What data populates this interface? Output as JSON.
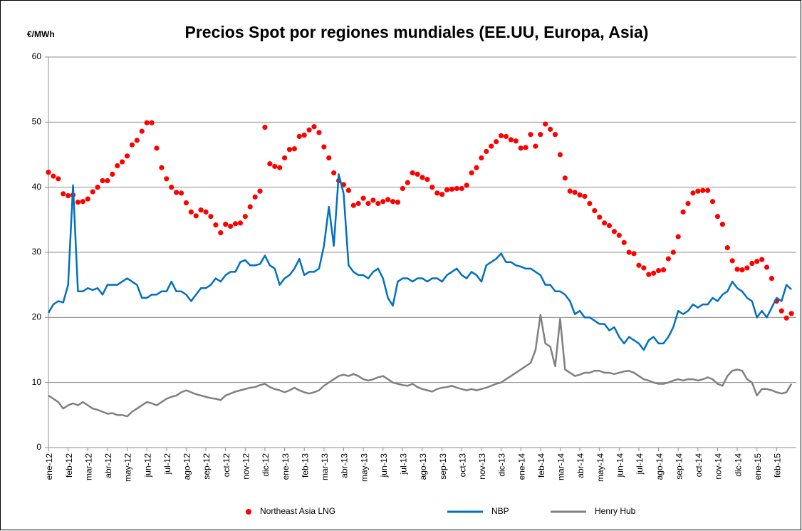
{
  "chart_data": {
    "type": "mixed",
    "title": "Precios Spot por regiones mundiales (EE.UU, Europa, Asia)",
    "y_label": "€/MWh",
    "ylim": [
      0,
      60
    ],
    "yticks": [
      0,
      10,
      20,
      30,
      40,
      50,
      60
    ],
    "xlim": [
      0,
      38
    ],
    "xticks": [
      {
        "value": 0,
        "label": "ene-12"
      },
      {
        "value": 1,
        "label": "feb-12"
      },
      {
        "value": 2,
        "label": "mar-12"
      },
      {
        "value": 3,
        "label": "abr-12"
      },
      {
        "value": 4,
        "label": "may-12"
      },
      {
        "value": 5,
        "label": "jun-12"
      },
      {
        "value": 6,
        "label": "jul-12"
      },
      {
        "value": 7,
        "label": "ago-12"
      },
      {
        "value": 8,
        "label": "sep-12"
      },
      {
        "value": 9,
        "label": "oct-12"
      },
      {
        "value": 10,
        "label": "nov-12"
      },
      {
        "value": 11,
        "label": "dic-12"
      },
      {
        "value": 12,
        "label": "ene-13"
      },
      {
        "value": 13,
        "label": "feb-13"
      },
      {
        "value": 14,
        "label": "mar-13"
      },
      {
        "value": 15,
        "label": "abr-13"
      },
      {
        "value": 16,
        "label": "may-13"
      },
      {
        "value": 17,
        "label": "jun-13"
      },
      {
        "value": 18,
        "label": "jul-13"
      },
      {
        "value": 19,
        "label": "ago-13"
      },
      {
        "value": 20,
        "label": "sep-13"
      },
      {
        "value": 21,
        "label": "oct-13"
      },
      {
        "value": 22,
        "label": "nov-13"
      },
      {
        "value": 23,
        "label": "dic-13"
      },
      {
        "value": 24,
        "label": "ene-14"
      },
      {
        "value": 25,
        "label": "feb-14"
      },
      {
        "value": 26,
        "label": "mar-14"
      },
      {
        "value": 27,
        "label": "abr-14"
      },
      {
        "value": 28,
        "label": "may-14"
      },
      {
        "value": 29,
        "label": "jun-14"
      },
      {
        "value": 30,
        "label": "jul-14"
      },
      {
        "value": 31,
        "label": "ago-14"
      },
      {
        "value": 32,
        "label": "sep-14"
      },
      {
        "value": 33,
        "label": "oct-14"
      },
      {
        "value": 34,
        "label": "nov-14"
      },
      {
        "value": 35,
        "label": "dic-14"
      },
      {
        "value": 36,
        "label": "ene-15"
      },
      {
        "value": 37,
        "label": "feb-15"
      }
    ],
    "grid": true,
    "legend": "bottom",
    "x": [
      0,
      0.25,
      0.5,
      0.75,
      1,
      1.25,
      1.5,
      1.75,
      2,
      2.25,
      2.5,
      2.75,
      3,
      3.25,
      3.5,
      3.75,
      4,
      4.25,
      4.5,
      4.75,
      5,
      5.25,
      5.5,
      5.75,
      6,
      6.25,
      6.5,
      6.75,
      7,
      7.25,
      7.5,
      7.75,
      8,
      8.25,
      8.5,
      8.75,
      9,
      9.25,
      9.5,
      9.75,
      10,
      10.25,
      10.5,
      10.75,
      11,
      11.25,
      11.5,
      11.75,
      12,
      12.25,
      12.5,
      12.75,
      13,
      13.25,
      13.5,
      13.75,
      14,
      14.25,
      14.5,
      14.75,
      15,
      15.25,
      15.5,
      15.75,
      16,
      16.25,
      16.5,
      16.75,
      17,
      17.25,
      17.5,
      17.75,
      18,
      18.25,
      18.5,
      18.75,
      19,
      19.25,
      19.5,
      19.75,
      20,
      20.25,
      20.5,
      20.75,
      21,
      21.25,
      21.5,
      21.75,
      22,
      22.25,
      22.5,
      22.75,
      23,
      23.25,
      23.5,
      23.75,
      24,
      24.25,
      24.5,
      24.75,
      25,
      25.25,
      25.5,
      25.75,
      26,
      26.25,
      26.5,
      26.75,
      27,
      27.25,
      27.5,
      27.75,
      28,
      28.25,
      28.5,
      28.75,
      29,
      29.25,
      29.5,
      29.75,
      30,
      30.25,
      30.5,
      30.75,
      31,
      31.25,
      31.5,
      31.75,
      32,
      32.25,
      32.5,
      32.75,
      33,
      33.25,
      33.5,
      33.75,
      34,
      34.25,
      34.5,
      34.75,
      35,
      35.25,
      35.5,
      35.75,
      36,
      36.25,
      36.5,
      36.75,
      37,
      37.25,
      37.5,
      37.75
    ],
    "series": [
      {
        "name": "Northeast Asia LNG",
        "type": "scatter",
        "color": "#ff0000",
        "values": [
          42.3,
          41.7,
          41.3,
          39,
          38.7,
          38.8,
          37.7,
          37.8,
          38.2,
          39.3,
          40,
          41,
          41,
          42,
          43.3,
          43.9,
          44.8,
          46.5,
          47.2,
          48.6,
          49.9,
          49.9,
          46,
          43,
          41.3,
          40,
          39.2,
          39.1,
          37.6,
          36.2,
          35.6,
          36.5,
          36.2,
          35.5,
          34.2,
          33,
          34.3,
          34,
          34.4,
          34.5,
          35.5,
          37,
          38.5,
          39.4,
          49.2,
          43.6,
          43.2,
          43,
          44.5,
          45.8,
          45.9,
          47.8,
          48,
          48.8,
          49.3,
          48.4,
          46.2,
          44.5,
          42.2,
          41,
          40.4,
          39.5,
          37.2,
          37.5,
          38.3,
          37.5,
          38,
          37.5,
          37.8,
          38.1,
          37.8,
          37.7,
          39.8,
          40.7,
          42.2,
          42,
          41.5,
          41.2,
          40,
          39.1,
          38.9,
          39.6,
          39.7,
          39.8,
          39.8,
          40.3,
          42.2,
          43,
          44.5,
          45.5,
          46.3,
          47,
          47.9,
          47.8,
          47.3,
          47.1,
          46,
          46.1,
          48.1,
          46.3,
          48.1,
          49.7,
          48.9,
          48.1,
          45,
          41.4,
          39.4,
          39.2,
          38.8,
          38.6,
          37.5,
          36.4,
          35.4,
          34.5,
          34.1,
          33.2,
          32.6,
          31.5,
          30,
          29.8,
          28,
          27.6,
          26.6,
          26.8,
          27.2,
          27.3,
          29,
          30,
          32.4,
          36.2,
          37.5,
          39.1,
          39.4,
          39.5,
          39.5,
          37.8,
          35.5,
          34.3,
          30.7,
          28.7,
          27.4,
          27.3,
          27.6,
          28.3,
          28.6,
          28.9,
          27.7,
          26,
          22.5,
          21,
          19.9,
          20.6
        ]
      },
      {
        "name": "NBP",
        "type": "line",
        "color": "#0070c0",
        "values": [
          20.7,
          22,
          22.5,
          22.3,
          25,
          40.3,
          24,
          24,
          24.5,
          24.2,
          24.5,
          23.5,
          25,
          25,
          25,
          25.5,
          26,
          25.5,
          25,
          23,
          23,
          23.5,
          23.5,
          24,
          24,
          25.5,
          24,
          24,
          23.5,
          22.5,
          23.5,
          24.5,
          24.5,
          25,
          26,
          25.5,
          26.5,
          27,
          27,
          28.5,
          28.8,
          28,
          28,
          28.2,
          29.5,
          28,
          27.5,
          25,
          26,
          26.5,
          27.5,
          29,
          26.5,
          27,
          27,
          27.5,
          31,
          37,
          31,
          42,
          39,
          28,
          27,
          26.5,
          26.5,
          26,
          27,
          27.5,
          26,
          23,
          21.8,
          25.5,
          26,
          26,
          25.5,
          26,
          26,
          25.5,
          26,
          26,
          25.5,
          26.5,
          27,
          27.5,
          26.5,
          26,
          27,
          26.5,
          25.5,
          28,
          28.5,
          29,
          29.8,
          28.5,
          28.5,
          28,
          27.8,
          27.5,
          27.5,
          27,
          26.5,
          25,
          25,
          24,
          24,
          23.5,
          22.5,
          20.5,
          21,
          20,
          20,
          19.5,
          19,
          19,
          18,
          18.5,
          17,
          16,
          17,
          16.5,
          16,
          15,
          16.5,
          17,
          16,
          16,
          17,
          18.5,
          21,
          20.5,
          21,
          22,
          21.5,
          22,
          22,
          23,
          22.5,
          23.5,
          24,
          25.5,
          24.5,
          24,
          23,
          22.5,
          20,
          21,
          20,
          21.5,
          23,
          22.5,
          25,
          24.3
        ]
      },
      {
        "name": "Henry Hub",
        "type": "line",
        "color": "#808080",
        "values": [
          8,
          7.5,
          7,
          6,
          6.5,
          6.8,
          6.5,
          7,
          6.5,
          6,
          5.8,
          5.5,
          5.2,
          5.3,
          5,
          5,
          4.8,
          5.5,
          6,
          6.5,
          7,
          6.8,
          6.5,
          7,
          7.5,
          7.8,
          8,
          8.5,
          8.8,
          8.5,
          8.2,
          8,
          7.8,
          7.6,
          7.5,
          7.3,
          8,
          8.3,
          8.6,
          8.8,
          9,
          9.2,
          9.3,
          9.6,
          9.8,
          9.3,
          9,
          8.8,
          8.5,
          8.8,
          9.2,
          8.8,
          8.5,
          8.3,
          8.5,
          8.8,
          9.5,
          10,
          10.5,
          11,
          11.2,
          11,
          11.3,
          11,
          10.5,
          10.3,
          10.5,
          10.8,
          11,
          10.5,
          10,
          9.8,
          9.6,
          9.5,
          9.8,
          9.3,
          9,
          8.8,
          8.6,
          9,
          9.2,
          9.3,
          9.5,
          9.2,
          9,
          8.8,
          9,
          8.8,
          9,
          9.2,
          9.5,
          9.8,
          10,
          10.5,
          11,
          11.5,
          12,
          12.5,
          13,
          15,
          20.4,
          16,
          15.5,
          12.5,
          19.8,
          12,
          11.5,
          11,
          11.2,
          11.5,
          11.5,
          11.8,
          11.8,
          11.5,
          11.5,
          11.3,
          11.5,
          11.7,
          11.8,
          11.5,
          11,
          10.5,
          10.3,
          10,
          9.8,
          9.8,
          10,
          10.3,
          10.5,
          10.3,
          10.5,
          10.5,
          10.3,
          10.5,
          10.8,
          10.5,
          9.8,
          9.5,
          11,
          11.8,
          12,
          11.8,
          10.5,
          10,
          8,
          9,
          9,
          8.8,
          8.5,
          8.3,
          8.5,
          9.8
        ]
      }
    ]
  }
}
